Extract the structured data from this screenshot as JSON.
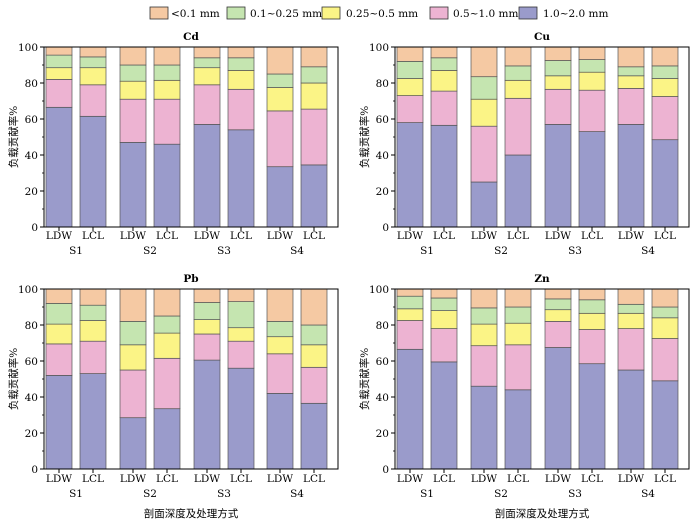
{
  "legend": [
    {
      "label": "<0.1 mm",
      "color": "#F5C9A3"
    },
    {
      "label": "0.1~0.25 mm",
      "color": "#C5E5B0"
    },
    {
      "label": "0.25~0.5 mm",
      "color": "#FBF486"
    },
    {
      "label": "0.5~1.0 mm",
      "color": "#EDB3D2"
    },
    {
      "label": "1.0~2.0 mm",
      "color": "#9A9BCB"
    }
  ],
  "chart_data": [
    {
      "type": "bar",
      "stacked": true,
      "title": "Cd",
      "ylabel": "负载贡献率%",
      "xlabel": "",
      "ylim": [
        0,
        100
      ],
      "yticks": [
        0,
        20,
        40,
        60,
        80,
        100
      ],
      "categories": [
        "LDW",
        "LCL",
        "LDW",
        "LCL",
        "LDW",
        "LCL",
        "LDW",
        "LCL"
      ],
      "groups": [
        "S1",
        "S2",
        "S3",
        "S4"
      ],
      "series": [
        {
          "name": "1.0~2.0 mm",
          "values": [
            66.5,
            61.5,
            47,
            46,
            57,
            54,
            33.5,
            34.5
          ]
        },
        {
          "name": "0.5~1.0 mm",
          "values": [
            15.5,
            17.5,
            24,
            25,
            22,
            22.5,
            31,
            31
          ]
        },
        {
          "name": "0.25~0.5 mm",
          "values": [
            6.5,
            9.5,
            10,
            10.5,
            9.5,
            10.5,
            13,
            14.5
          ]
        },
        {
          "name": "0.1~0.25 mm",
          "values": [
            7,
            6,
            9,
            8.5,
            5.5,
            7,
            7.5,
            9
          ]
        },
        {
          "name": "<0.1 mm",
          "values": [
            4.5,
            5.5,
            10,
            10,
            6,
            6,
            15,
            11
          ]
        }
      ]
    },
    {
      "type": "bar",
      "stacked": true,
      "title": "Cu",
      "ylabel": "负载贡献率%",
      "xlabel": "",
      "ylim": [
        0,
        100
      ],
      "yticks": [
        0,
        20,
        40,
        60,
        80,
        100
      ],
      "categories": [
        "LDW",
        "LCL",
        "LDW",
        "LCL",
        "LDW",
        "LCL",
        "LDW",
        "LCL"
      ],
      "groups": [
        "S1",
        "S2",
        "S3",
        "S4"
      ],
      "series": [
        {
          "name": "1.0~2.0 mm",
          "values": [
            58,
            56.5,
            25,
            40,
            57,
            53,
            57,
            48.5
          ]
        },
        {
          "name": "0.5~1.0 mm",
          "values": [
            15,
            19,
            31,
            31.5,
            19.5,
            23,
            20,
            24
          ]
        },
        {
          "name": "0.25~0.5 mm",
          "values": [
            9.5,
            11.5,
            15,
            10,
            7.5,
            10,
            7,
            10
          ]
        },
        {
          "name": "0.1~0.25 mm",
          "values": [
            9.5,
            7,
            12.5,
            8,
            8.5,
            7,
            5,
            7
          ]
        },
        {
          "name": "<0.1 mm",
          "values": [
            8,
            6,
            16.5,
            10.5,
            7.5,
            7,
            11,
            10.5
          ]
        }
      ]
    },
    {
      "type": "bar",
      "stacked": true,
      "title": "Pb",
      "ylabel": "负载贡献率%",
      "xlabel": "剖面深度及处理方式",
      "ylim": [
        0,
        100
      ],
      "yticks": [
        0,
        20,
        40,
        60,
        80,
        100
      ],
      "categories": [
        "LDW",
        "LCL",
        "LDW",
        "LCL",
        "LDW",
        "LCL",
        "LDW",
        "LCL"
      ],
      "groups": [
        "S1",
        "S2",
        "S3",
        "S4"
      ],
      "series": [
        {
          "name": "1.0~2.0 mm",
          "values": [
            52,
            53,
            28.5,
            33.5,
            60.5,
            56,
            42,
            36.5
          ]
        },
        {
          "name": "0.5~1.0 mm",
          "values": [
            17.5,
            18,
            26.5,
            28,
            14.5,
            15,
            22,
            20
          ]
        },
        {
          "name": "0.25~0.5 mm",
          "values": [
            11,
            11.5,
            14,
            14,
            8,
            7.5,
            9.5,
            12.5
          ]
        },
        {
          "name": "0.1~0.25 mm",
          "values": [
            11.5,
            8.5,
            13,
            9.5,
            9.5,
            14.5,
            8.5,
            11
          ]
        },
        {
          "name": "<0.1 mm",
          "values": [
            8,
            9,
            18,
            15,
            7.5,
            7,
            18,
            20
          ]
        }
      ]
    },
    {
      "type": "bar",
      "stacked": true,
      "title": "Zn",
      "ylabel": "负载贡献率%",
      "xlabel": "剖面深度及处理方式",
      "ylim": [
        0,
        100
      ],
      "yticks": [
        0,
        20,
        40,
        60,
        80,
        100
      ],
      "categories": [
        "LDW",
        "LCL",
        "LDW",
        "LCL",
        "LDW",
        "LCL",
        "LDW",
        "LCL"
      ],
      "groups": [
        "S1",
        "S2",
        "S3",
        "S4"
      ],
      "series": [
        {
          "name": "1.0~2.0 mm",
          "values": [
            66.5,
            59.5,
            46,
            44,
            67.5,
            58.5,
            55,
            49
          ]
        },
        {
          "name": "0.5~1.0 mm",
          "values": [
            16,
            18.5,
            22.5,
            25,
            14.5,
            19,
            23,
            23.5
          ]
        },
        {
          "name": "0.25~0.5 mm",
          "values": [
            6.5,
            10,
            12,
            12,
            6.5,
            9,
            8.5,
            11.5
          ]
        },
        {
          "name": "0.1~0.25 mm",
          "values": [
            7,
            7,
            9,
            9,
            6,
            7.5,
            5,
            6
          ]
        },
        {
          "name": "<0.1 mm",
          "values": [
            4,
            5,
            10.5,
            10,
            5.5,
            6,
            8.5,
            10
          ]
        }
      ]
    }
  ]
}
